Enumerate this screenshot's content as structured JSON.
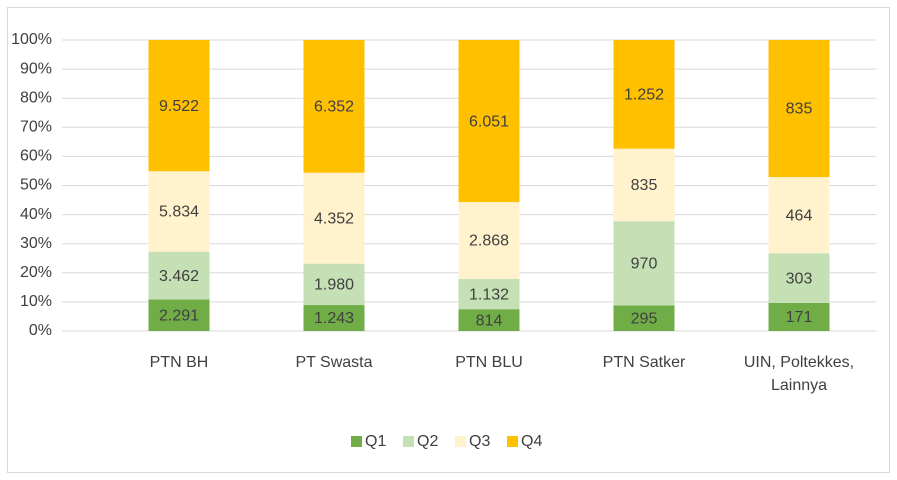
{
  "chart_data": {
    "type": "bar",
    "stack": "percent",
    "categories": [
      "PTN BH",
      "PT Swasta",
      "PTN BLU",
      "PTN Satker",
      "UIN, Poltekkes, Lainnya"
    ],
    "series": [
      {
        "name": "Q1",
        "color": "#70ad47",
        "values": [
          2291,
          1243,
          814,
          295,
          171
        ],
        "value_labels": [
          "2.291",
          "1.243",
          "814",
          "295",
          "171"
        ]
      },
      {
        "name": "Q2",
        "color": "#c5e0b4",
        "values": [
          3462,
          1980,
          1132,
          970,
          303
        ],
        "value_labels": [
          "3.462",
          "1.980",
          "1.132",
          "970",
          "303"
        ]
      },
      {
        "name": "Q3",
        "color": "#fff2cc",
        "values": [
          5834,
          4352,
          2868,
          835,
          464
        ],
        "value_labels": [
          "5.834",
          "4.352",
          "2.868",
          "835",
          "464"
        ]
      },
      {
        "name": "Q4",
        "color": "#ffc000",
        "values": [
          9522,
          6352,
          6051,
          1252,
          835
        ],
        "value_labels": [
          "9.522",
          "6.352",
          "6.051",
          "1.252",
          "835"
        ]
      }
    ],
    "ylim": [
      0,
      100
    ],
    "yticks": [
      {
        "value": 0,
        "label": "0%"
      },
      {
        "value": 10,
        "label": "10%"
      },
      {
        "value": 20,
        "label": "20%"
      },
      {
        "value": 30,
        "label": "30%"
      },
      {
        "value": 40,
        "label": "40%"
      },
      {
        "value": 50,
        "label": "50%"
      },
      {
        "value": 60,
        "label": "60%"
      },
      {
        "value": 70,
        "label": "70%"
      },
      {
        "value": 80,
        "label": "80%"
      },
      {
        "value": 90,
        "label": "90%"
      },
      {
        "value": 100,
        "label": "100%"
      }
    ],
    "grid": true,
    "legend": "bottom"
  }
}
